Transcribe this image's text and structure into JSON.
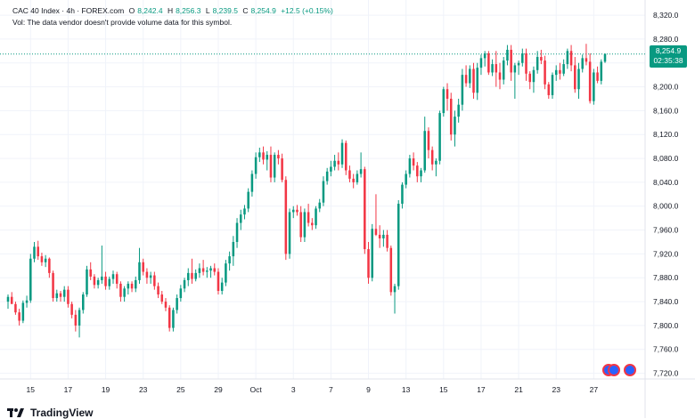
{
  "header": {
    "symbol": "CAC 40 Index · 4h · FOREX.com",
    "open_label": "O",
    "open_value": "8,242.4",
    "high_label": "H",
    "high_value": "8,256.3",
    "low_label": "L",
    "low_value": "8,239.5",
    "close_label": "C",
    "close_value": "8,254.9",
    "change": "+12.5 (+0.15%)",
    "vol_note": "Vol: The data vendor doesn't provide volume data for this symbol."
  },
  "price_tag": {
    "price": "8,254.9",
    "countdown": "02:35:38"
  },
  "brand": {
    "name": "TradingView"
  },
  "colors": {
    "up": "#089981",
    "down": "#f23645",
    "grid": "#f0f3fa",
    "text": "#131722",
    "last_price_line": "#089981"
  },
  "chart_data": {
    "type": "candlestick",
    "title": "CAC 40 Index · 4h · FOREX.com",
    "ylim": [
      7700,
      8335
    ],
    "y_ticks": [
      "7,720.0",
      "7,760.0",
      "7,800.0",
      "7,840.0",
      "7,880.0",
      "7,920.0",
      "7,960.0",
      "8,000.0",
      "8,040.0",
      "8,080.0",
      "8,120.0",
      "8,160.0",
      "8,200.0",
      "8,240.0",
      "8,280.0",
      "8,320.0"
    ],
    "y_tick_values": [
      7720,
      7760,
      7800,
      7840,
      7880,
      7920,
      7960,
      8000,
      8040,
      8080,
      8120,
      8160,
      8200,
      8240,
      8280,
      8320
    ],
    "x_ticks": [
      {
        "label": "15",
        "index": 6
      },
      {
        "label": "17",
        "index": 16
      },
      {
        "label": "19",
        "index": 26
      },
      {
        "label": "23",
        "index": 36
      },
      {
        "label": "25",
        "index": 46
      },
      {
        "label": "29",
        "index": 56
      },
      {
        "label": "Oct",
        "index": 66
      },
      {
        "label": "3",
        "index": 76
      },
      {
        "label": "7",
        "index": 86
      },
      {
        "label": "9",
        "index": 96
      },
      {
        "label": "13",
        "index": 106
      },
      {
        "label": "15",
        "index": 116
      },
      {
        "label": "17",
        "index": 126
      },
      {
        "label": "21",
        "index": 136
      },
      {
        "label": "23",
        "index": 146
      },
      {
        "label": "27",
        "index": 156
      }
    ],
    "last_price": 8254.9,
    "candles": [
      [
        7840,
        7852,
        7828,
        7848
      ],
      [
        7848,
        7856,
        7842,
        7836
      ],
      [
        7836,
        7840,
        7818,
        7822
      ],
      [
        7822,
        7828,
        7800,
        7808
      ],
      [
        7808,
        7842,
        7804,
        7838
      ],
      [
        7838,
        7850,
        7830,
        7842
      ],
      [
        7842,
        7920,
        7838,
        7912
      ],
      [
        7912,
        7940,
        7906,
        7932
      ],
      [
        7932,
        7942,
        7910,
        7916
      ],
      [
        7916,
        7922,
        7900,
        7906
      ],
      [
        7906,
        7918,
        7898,
        7912
      ],
      [
        7912,
        7914,
        7880,
        7888
      ],
      [
        7888,
        7892,
        7840,
        7846
      ],
      [
        7846,
        7860,
        7840,
        7854
      ],
      [
        7854,
        7858,
        7840,
        7848
      ],
      [
        7848,
        7866,
        7840,
        7860
      ],
      [
        7860,
        7866,
        7830,
        7836
      ],
      [
        7836,
        7840,
        7812,
        7818
      ],
      [
        7818,
        7826,
        7790,
        7800
      ],
      [
        7800,
        7830,
        7780,
        7826
      ],
      [
        7826,
        7856,
        7820,
        7852
      ],
      [
        7852,
        7900,
        7848,
        7894
      ],
      [
        7894,
        7906,
        7876,
        7882
      ],
      [
        7882,
        7886,
        7862,
        7868
      ],
      [
        7868,
        7880,
        7862,
        7876
      ],
      [
        7876,
        7934,
        7870,
        7882
      ],
      [
        7882,
        7890,
        7860,
        7866
      ],
      [
        7866,
        7882,
        7860,
        7878
      ],
      [
        7878,
        7892,
        7870,
        7886
      ],
      [
        7886,
        7890,
        7862,
        7870
      ],
      [
        7870,
        7874,
        7840,
        7848
      ],
      [
        7848,
        7866,
        7840,
        7862
      ],
      [
        7862,
        7874,
        7852,
        7870
      ],
      [
        7870,
        7874,
        7856,
        7862
      ],
      [
        7862,
        7882,
        7856,
        7876
      ],
      [
        7876,
        7930,
        7870,
        7906
      ],
      [
        7906,
        7912,
        7884,
        7890
      ],
      [
        7890,
        7896,
        7870,
        7880
      ],
      [
        7880,
        7890,
        7870,
        7884
      ],
      [
        7884,
        7890,
        7860,
        7866
      ],
      [
        7866,
        7872,
        7846,
        7852
      ],
      [
        7852,
        7858,
        7836,
        7840
      ],
      [
        7840,
        7846,
        7824,
        7830
      ],
      [
        7830,
        7834,
        7790,
        7796
      ],
      [
        7796,
        7830,
        7790,
        7826
      ],
      [
        7826,
        7852,
        7820,
        7846
      ],
      [
        7846,
        7868,
        7840,
        7862
      ],
      [
        7862,
        7880,
        7856,
        7876
      ],
      [
        7876,
        7896,
        7866,
        7888
      ],
      [
        7888,
        7912,
        7870,
        7878
      ],
      [
        7878,
        7894,
        7874,
        7888
      ],
      [
        7888,
        7904,
        7880,
        7896
      ],
      [
        7896,
        7910,
        7884,
        7890
      ],
      [
        7890,
        7898,
        7880,
        7892
      ],
      [
        7892,
        7900,
        7880,
        7896
      ],
      [
        7896,
        7904,
        7884,
        7890
      ],
      [
        7890,
        7896,
        7852,
        7858
      ],
      [
        7858,
        7880,
        7852,
        7872
      ],
      [
        7872,
        7910,
        7866,
        7904
      ],
      [
        7904,
        7924,
        7892,
        7916
      ],
      [
        7916,
        7950,
        7900,
        7940
      ],
      [
        7940,
        7980,
        7930,
        7972
      ],
      [
        7972,
        7994,
        7960,
        7986
      ],
      [
        7986,
        8002,
        7978,
        7996
      ],
      [
        7996,
        8030,
        7990,
        8024
      ],
      [
        8024,
        8060,
        8016,
        8054
      ],
      [
        8054,
        8090,
        8046,
        8082
      ],
      [
        8082,
        8098,
        8074,
        8090
      ],
      [
        8090,
        8100,
        8070,
        8078
      ],
      [
        8078,
        8092,
        8060,
        8086
      ],
      [
        8086,
        8100,
        8040,
        8048
      ],
      [
        8048,
        8090,
        8040,
        8086
      ],
      [
        8086,
        8094,
        8070,
        8080
      ],
      [
        8080,
        8088,
        8040,
        8044
      ],
      [
        8044,
        8050,
        7910,
        7920
      ],
      [
        7920,
        7996,
        7912,
        7990
      ],
      [
        7990,
        8000,
        7980,
        7994
      ],
      [
        7994,
        8002,
        7984,
        7990
      ],
      [
        7990,
        8000,
        7940,
        7948
      ],
      [
        7948,
        7996,
        7940,
        7990
      ],
      [
        7990,
        8004,
        7966,
        7972
      ],
      [
        7972,
        7980,
        7960,
        7968
      ],
      [
        7968,
        8000,
        7962,
        7996
      ],
      [
        7996,
        8012,
        7990,
        8006
      ],
      [
        8006,
        8050,
        8000,
        8042
      ],
      [
        8042,
        8064,
        8036,
        8058
      ],
      [
        8058,
        8076,
        8050,
        8066
      ],
      [
        8066,
        8086,
        8060,
        8076
      ],
      [
        8076,
        8090,
        8060,
        8070
      ],
      [
        8070,
        8112,
        8064,
        8106
      ],
      [
        8106,
        8110,
        8052,
        8060
      ],
      [
        8060,
        8068,
        8040,
        8046
      ],
      [
        8046,
        8054,
        8030,
        8040
      ],
      [
        8040,
        8060,
        8036,
        8054
      ],
      [
        8054,
        8090,
        8048,
        8062
      ],
      [
        8062,
        8066,
        7920,
        7928
      ],
      [
        7928,
        7940,
        7870,
        7880
      ],
      [
        7880,
        7970,
        7874,
        7962
      ],
      [
        7962,
        8020,
        7950,
        7952
      ],
      [
        7952,
        7968,
        7930,
        7946
      ],
      [
        7946,
        7960,
        7932,
        7952
      ],
      [
        7952,
        7960,
        7924,
        7930
      ],
      [
        7930,
        7934,
        7850,
        7856
      ],
      [
        7856,
        7870,
        7820,
        7866
      ],
      [
        7866,
        8010,
        7860,
        8004
      ],
      [
        8004,
        8040,
        7996,
        8036
      ],
      [
        8036,
        8060,
        8030,
        8054
      ],
      [
        8054,
        8086,
        8048,
        8080
      ],
      [
        8080,
        8090,
        8060,
        8068
      ],
      [
        8068,
        8074,
        8040,
        8050
      ],
      [
        8050,
        8064,
        8040,
        8060
      ],
      [
        8060,
        8150,
        8056,
        8126
      ],
      [
        8126,
        8132,
        8080,
        8094
      ],
      [
        8094,
        8100,
        8060,
        8070
      ],
      [
        8070,
        8080,
        8050,
        8076
      ],
      [
        8076,
        8160,
        8070,
        8156
      ],
      [
        8156,
        8200,
        8150,
        8196
      ],
      [
        8196,
        8206,
        8160,
        8180
      ],
      [
        8180,
        8190,
        8110,
        8120
      ],
      [
        8120,
        8160,
        8100,
        8150
      ],
      [
        8150,
        8180,
        8140,
        8170
      ],
      [
        8170,
        8230,
        8160,
        8220
      ],
      [
        8220,
        8236,
        8200,
        8206
      ],
      [
        8206,
        8236,
        8198,
        8230
      ],
      [
        8230,
        8240,
        8180,
        8190
      ],
      [
        8190,
        8240,
        8178,
        8232
      ],
      [
        8232,
        8254,
        8220,
        8248
      ],
      [
        8248,
        8260,
        8234,
        8256
      ],
      [
        8256,
        8260,
        8220,
        8224
      ],
      [
        8224,
        8246,
        8218,
        8238
      ],
      [
        8238,
        8260,
        8200,
        8224
      ],
      [
        8224,
        8240,
        8196,
        8212
      ],
      [
        8212,
        8250,
        8204,
        8244
      ],
      [
        8244,
        8270,
        8236,
        8262
      ],
      [
        8262,
        8270,
        8210,
        8224
      ],
      [
        8224,
        8240,
        8180,
        8236
      ],
      [
        8236,
        8244,
        8220,
        8240
      ],
      [
        8240,
        8264,
        8234,
        8256
      ],
      [
        8256,
        8264,
        8210,
        8222
      ],
      [
        8222,
        8226,
        8196,
        8208
      ],
      [
        8208,
        8234,
        8190,
        8228
      ],
      [
        8228,
        8260,
        8222,
        8250
      ],
      [
        8250,
        8262,
        8238,
        8244
      ],
      [
        8244,
        8252,
        8196,
        8204
      ],
      [
        8204,
        8208,
        8180,
        8186
      ],
      [
        8186,
        8224,
        8180,
        8220
      ],
      [
        8220,
        8236,
        8210,
        8228
      ],
      [
        8228,
        8240,
        8212,
        8222
      ],
      [
        8222,
        8246,
        8218,
        8238
      ],
      [
        8238,
        8264,
        8230,
        8260
      ],
      [
        8260,
        8270,
        8226,
        8236
      ],
      [
        8236,
        8250,
        8190,
        8196
      ],
      [
        8196,
        8240,
        8180,
        8230
      ],
      [
        8230,
        8254,
        8224,
        8248
      ],
      [
        8248,
        8272,
        8236,
        8242
      ],
      [
        8242,
        8256,
        8172,
        8176
      ],
      [
        8176,
        8230,
        8170,
        8224
      ],
      [
        8224,
        8234,
        8206,
        8210
      ],
      [
        8210,
        8246,
        8204,
        8242
      ],
      [
        8242,
        8256,
        8240,
        8255
      ]
    ]
  }
}
